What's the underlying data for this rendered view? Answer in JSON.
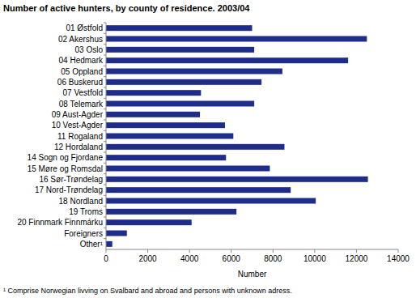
{
  "chart_data": {
    "type": "bar",
    "orientation": "horizontal",
    "title": "Number of active hunters, by county of residence. 2003/04",
    "x_label": "Number",
    "annotations": [
      "¹ Comprise Norwegian livving on Svalbard and abroad and persons with unknown adress."
    ],
    "categories": [
      "01 Østfold",
      "02 Akershus",
      "03 Oslo",
      "04 Hedmark",
      "05 Oppland",
      "06 Buskerud",
      "07 Vestfold",
      "08 Telemark",
      "09 Aust-Agder",
      "10 Vest-Agder",
      "11 Rogaland",
      "12 Hordaland",
      "14 Sogn og Fjordane",
      "15 Møre og Romsdal",
      "16 Sør-Trøndelag",
      "17 Nord-Trøndelag",
      "18 Nordland",
      "19 Troms",
      "20 Finnmark Finnmárku",
      "Foreigners",
      "Other¹"
    ],
    "values": [
      7000,
      12500,
      7100,
      11600,
      8450,
      7450,
      4550,
      7100,
      4500,
      5700,
      6100,
      8550,
      5750,
      7850,
      12550,
      8850,
      10050,
      6250,
      4100,
      1000,
      300
    ],
    "color": "#1f2d8a",
    "xlim": [
      0,
      14000
    ],
    "xticks": [
      0,
      2000,
      4000,
      6000,
      8000,
      10000,
      12000,
      14000
    ],
    "grid": false
  }
}
